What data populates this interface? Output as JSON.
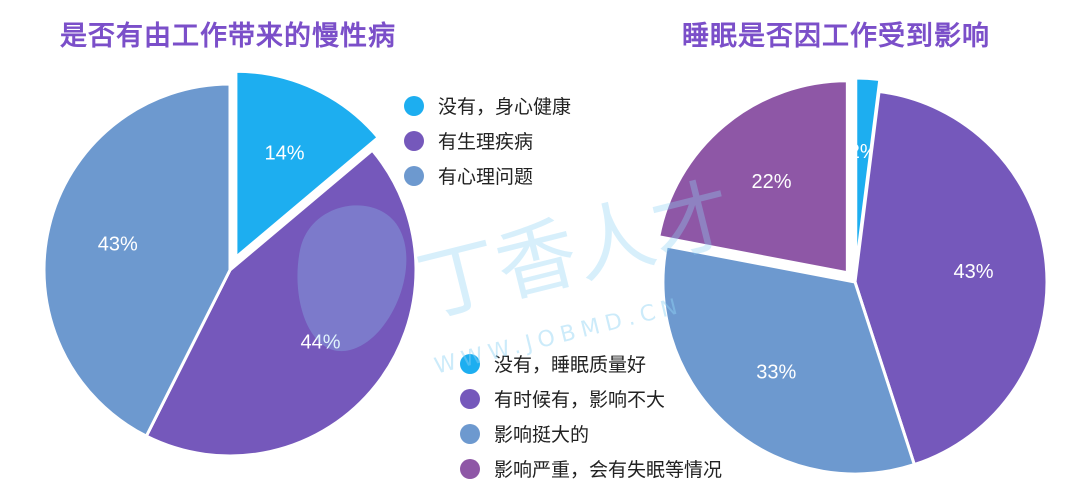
{
  "chart_data": [
    {
      "type": "pie",
      "title": "是否有由工作带来的慢性病",
      "labels": [
        "没有，身心健康",
        "有生理疾病",
        "有心理问题"
      ],
      "values": [
        14,
        44,
        43
      ],
      "value_labels": [
        "14%",
        "44%",
        "43%"
      ],
      "colors": [
        "#1daef0",
        "#7558bb",
        "#6d99cf"
      ],
      "exploded": [
        0
      ],
      "legend_position": "top-right"
    },
    {
      "type": "pie",
      "title": "睡眠是否因工作受到影响",
      "labels": [
        "没有，睡眠质量好",
        "有时候有，影响不大",
        "影响挺大的",
        "影响严重，会有失眠等情况"
      ],
      "values": [
        2,
        43,
        33,
        22
      ],
      "value_labels": [
        "2%",
        "43%",
        "33%",
        "22%"
      ],
      "colors": [
        "#1daef0",
        "#7558bb",
        "#6d99cf",
        "#8e57a6"
      ],
      "exploded": [
        0,
        3
      ],
      "legend_position": "bottom-left"
    }
  ],
  "watermark": {
    "text": "丁香人才",
    "subtext": "WWW.JOBMD.CN",
    "color": "#8fd3f5"
  }
}
